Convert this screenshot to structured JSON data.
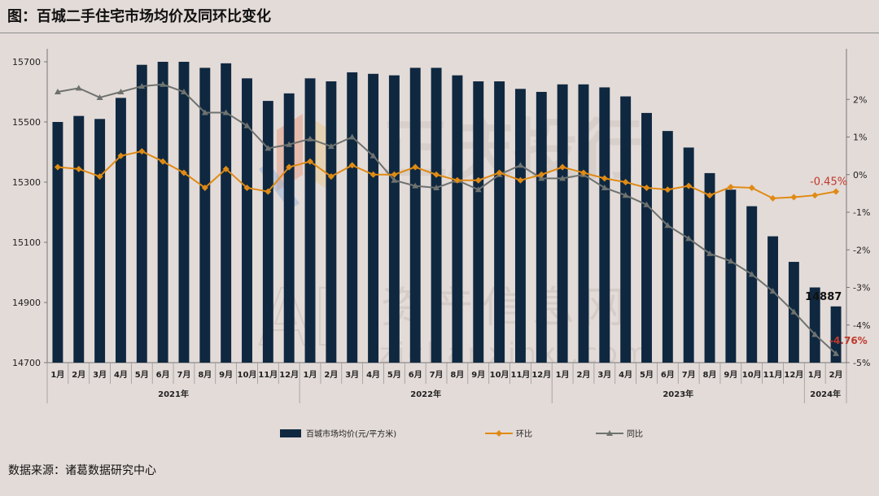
{
  "title": "图：百城二手住宅市场均价及同环比变化",
  "source": "数据来源：诸葛数据研究中心",
  "chart_data": {
    "type": "bar",
    "categories": [
      "1月",
      "2月",
      "3月",
      "4月",
      "5月",
      "6月",
      "7月",
      "8月",
      "9月",
      "10月",
      "11月",
      "12月",
      "1月",
      "2月",
      "3月",
      "4月",
      "5月",
      "6月",
      "7月",
      "8月",
      "9月",
      "10月",
      "11月",
      "12月",
      "1月",
      "2月",
      "3月",
      "4月",
      "5月",
      "6月",
      "7月",
      "8月",
      "9月",
      "10月",
      "11月",
      "12月",
      "1月",
      "2月"
    ],
    "year_groups": [
      {
        "label": "2021年",
        "start": 0,
        "count": 12
      },
      {
        "label": "2022年",
        "start": 12,
        "count": 12
      },
      {
        "label": "2023年",
        "start": 24,
        "count": 12
      },
      {
        "label": "2024年",
        "start": 36,
        "count": 2
      }
    ],
    "ylim_left": [
      14700,
      15700
    ],
    "yticks_left": [
      14700,
      14900,
      15100,
      15300,
      15500,
      15700
    ],
    "ylim_right": [
      -5,
      3
    ],
    "yticks_right": [
      -5,
      -4,
      -3,
      -2,
      -1,
      0,
      1,
      2
    ],
    "yticks_right_labels": [
      "-5%",
      "-4%",
      "-3%",
      "-2%",
      "-1%",
      "0%",
      "1%",
      "2%"
    ],
    "series": [
      {
        "name": "百城市场均价(元/平方米)",
        "type": "bar",
        "axis": "left",
        "color": "#0f2840",
        "values": [
          15500,
          15520,
          15510,
          15580,
          15690,
          15700,
          15700,
          15680,
          15695,
          15645,
          15570,
          15595,
          15645,
          15635,
          15665,
          15660,
          15655,
          15680,
          15680,
          15655,
          15635,
          15635,
          15610,
          15600,
          15625,
          15625,
          15615,
          15585,
          15530,
          15470,
          15415,
          15330,
          15275,
          15220,
          15120,
          15035,
          14950,
          14887
        ]
      },
      {
        "name": "环比",
        "type": "line",
        "axis": "right",
        "color": "#e08a14",
        "values": [
          0.2,
          0.15,
          -0.05,
          0.5,
          0.62,
          0.35,
          0.05,
          -0.35,
          0.15,
          -0.35,
          -0.45,
          0.2,
          0.35,
          -0.05,
          0.25,
          0.0,
          0.0,
          0.2,
          0.0,
          -0.15,
          -0.15,
          0.05,
          -0.15,
          0.0,
          0.2,
          0.05,
          -0.1,
          -0.2,
          -0.35,
          -0.4,
          -0.3,
          -0.55,
          -0.33,
          -0.35,
          -0.63,
          -0.6,
          -0.55,
          -0.45
        ]
      },
      {
        "name": "同比",
        "type": "line",
        "axis": "right",
        "color": "#6e726f",
        "values": [
          2.2,
          2.3,
          2.05,
          2.2,
          2.35,
          2.4,
          2.2,
          1.65,
          1.65,
          1.3,
          0.7,
          0.8,
          0.95,
          0.75,
          1.0,
          0.5,
          -0.15,
          -0.3,
          -0.35,
          -0.15,
          -0.4,
          0.0,
          0.25,
          -0.1,
          -0.1,
          0.0,
          -0.35,
          -0.55,
          -0.8,
          -1.35,
          -1.7,
          -2.1,
          -2.3,
          -2.65,
          -3.1,
          -3.65,
          -4.25,
          -4.76
        ]
      }
    ],
    "annotations": {
      "last_bar": "14887",
      "last_mom": "-0.45%",
      "last_yoy": "-4.76%"
    },
    "watermark": [
      "正庆投行",
      "AI",
      "资产信息网",
      "zichanxinxi.com"
    ]
  },
  "legend": {
    "bar": "百城市场均价(元/平方米)",
    "mom": "环比",
    "yoy": "同比"
  }
}
